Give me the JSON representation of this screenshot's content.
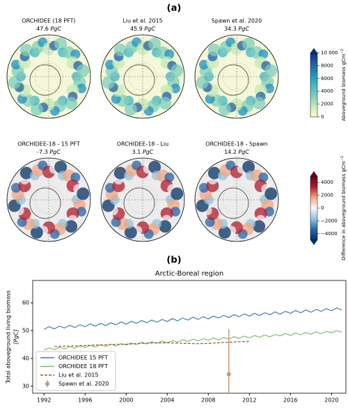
{
  "panel_a": {
    "label": "(a)",
    "maps": [
      {
        "title": "ORCHIDEE (18 PFT)",
        "amount": "47.6",
        "unit": "PgC"
      },
      {
        "title": "Liu et al. 2015",
        "amount": "45.9",
        "unit": "PgC"
      },
      {
        "title": "Spawn et al. 2020",
        "amount": "34.3",
        "unit": "PgC"
      },
      {
        "title": "ORCHIDEE-18 - 15 PFT",
        "amount": "-7.3",
        "unit": "PgC"
      },
      {
        "title": "ORCHIDEE-18 - Liu",
        "amount": "3.1",
        "unit": "PgC"
      },
      {
        "title": "ORCHIDEE-18 - Spawn",
        "amount": "14.2",
        "unit": "PgC"
      }
    ],
    "colorbars": [
      {
        "label": "Aboveground biomass gCm",
        "label_sup": "−2",
        "lim": [
          0,
          10000
        ],
        "ticks": [
          0,
          2000,
          4000,
          6000,
          8000,
          {
            "value": 10000,
            "label": "10 000"
          }
        ],
        "colors": [
          "#ffffcc",
          "#c7e9b4",
          "#7fcdbb",
          "#41b6c4",
          "#1d91c0",
          "#225ea8",
          "#0c2c84"
        ]
      },
      {
        "label": "Difference in aboveground biomass gCm",
        "label_sup": "−2",
        "lim": [
          -5000,
          5000
        ],
        "ticks": [
          {
            "value": -4000,
            "label": "−4000"
          },
          {
            "value": -2000,
            "label": "−2000"
          },
          0,
          2000,
          4000
        ],
        "colors": [
          "#053061",
          "#2166ac",
          "#92c5de",
          "#f7f7f7",
          "#f4a582",
          "#b2182b",
          "#67001f"
        ]
      }
    ]
  },
  "chart_data": {
    "type": "line",
    "label": "(b)",
    "title": "Arctic-Boreal region",
    "y_label": "Total aboveground living biomass",
    "y_unit": "[PgC]",
    "xlim": [
      1990.9,
      2021.4
    ],
    "ylim": [
      27.5,
      68
    ],
    "xticks": [
      1992,
      1996,
      2000,
      2004,
      2008,
      2012,
      2016,
      2020
    ],
    "yticks": [
      30,
      40,
      50,
      60
    ],
    "legend": "lower left",
    "series": [
      {
        "name": "ORCHIDEE 15 PFT",
        "color": "#3f7fa6",
        "style": "solid",
        "x": [
          1992,
          1992.5,
          1993,
          1993.5,
          1994,
          1994.5,
          1995,
          1995.5,
          1996,
          1996.5,
          1997,
          1997.5,
          1998,
          1998.5,
          1999,
          1999.5,
          2000,
          2000.5,
          2001,
          2001.5,
          2002,
          2002.5,
          2003,
          2003.5,
          2004,
          2004.5,
          2005,
          2005.5,
          2006,
          2006.5,
          2007,
          2007.5,
          2008,
          2008.5,
          2009,
          2009.5,
          2010,
          2010.5,
          2011,
          2011.5,
          2012,
          2012.5,
          2013,
          2013.5,
          2014,
          2014.5,
          2015,
          2015.5,
          2016,
          2016.5,
          2017,
          2017.5,
          2018,
          2018.5,
          2019,
          2019.5,
          2020,
          2020.5,
          2021
        ],
        "values": [
          50.4,
          51.4,
          50.6,
          51.6,
          50.9,
          51.9,
          51.1,
          52.1,
          51.4,
          52.4,
          51.6,
          52.6,
          51.8,
          52.8,
          52.1,
          53.1,
          52.3,
          53.3,
          52.6,
          53.6,
          52.8,
          53.8,
          53.0,
          54.0,
          53.3,
          54.3,
          53.5,
          54.5,
          53.8,
          54.8,
          54.0,
          55.0,
          54.2,
          55.2,
          54.5,
          55.5,
          54.7,
          55.7,
          55.0,
          56.0,
          55.2,
          56.2,
          55.4,
          56.4,
          55.7,
          56.7,
          55.9,
          56.9,
          56.2,
          57.2,
          56.4,
          57.4,
          56.6,
          57.6,
          56.9,
          57.9,
          57.1,
          58.1,
          57.4
        ]
      },
      {
        "name": "ORCHIDEE 18 PFT",
        "color": "#7cbf6b",
        "style": "solid",
        "x": [
          1992,
          1992.5,
          1993,
          1993.5,
          1994,
          1994.5,
          1995,
          1995.5,
          1996,
          1996.5,
          1997,
          1997.5,
          1998,
          1998.5,
          1999,
          1999.5,
          2000,
          2000.5,
          2001,
          2001.5,
          2002,
          2002.5,
          2003,
          2003.5,
          2004,
          2004.5,
          2005,
          2005.5,
          2006,
          2006.5,
          2007,
          2007.5,
          2008,
          2008.5,
          2009,
          2009.5,
          2010,
          2010.5,
          2011,
          2011.5,
          2012,
          2012.5,
          2013,
          2013.5,
          2014,
          2014.5,
          2015,
          2015.5,
          2016,
          2016.5,
          2017,
          2017.5,
          2018,
          2018.5,
          2019,
          2019.5,
          2020,
          2020.5,
          2021
        ],
        "values": [
          43.0,
          43.8,
          43.2,
          44.0,
          43.4,
          44.2,
          43.7,
          44.5,
          43.9,
          44.7,
          44.1,
          44.9,
          44.3,
          45.1,
          44.5,
          45.3,
          44.8,
          45.6,
          45.0,
          45.8,
          45.2,
          46.0,
          45.4,
          46.2,
          45.6,
          46.4,
          45.9,
          46.7,
          46.1,
          46.9,
          46.3,
          47.1,
          46.5,
          47.3,
          46.7,
          47.5,
          47.0,
          47.8,
          47.2,
          48.0,
          47.4,
          48.2,
          47.6,
          48.4,
          47.8,
          48.6,
          48.1,
          48.9,
          48.3,
          49.1,
          48.5,
          49.3,
          48.7,
          49.5,
          48.9,
          49.7,
          49.2,
          50.0,
          49.4
        ]
      },
      {
        "name": "Liu et al. 2015",
        "color": "#a0522d",
        "style": "dashed",
        "x": [
          1993,
          1994,
          1995,
          1996,
          1997,
          1998,
          1999,
          2000,
          2001,
          2002,
          2003,
          2004,
          2005,
          2006,
          2007,
          2008,
          2009,
          2010,
          2011,
          2012
        ],
        "values": [
          44.3,
          44.4,
          44.5,
          44.6,
          44.8,
          44.9,
          45.0,
          45.1,
          45.3,
          45.5,
          45.6,
          45.6,
          45.5,
          45.4,
          45.3,
          45.4,
          45.6,
          45.8,
          46.0,
          46.1
        ]
      },
      {
        "name": "Spawn et al. 2020",
        "color": "#c49a74",
        "style": "errorbar",
        "x": [
          2010
        ],
        "values": [
          34.3
        ],
        "errors": [
          16.2
        ]
      }
    ]
  }
}
